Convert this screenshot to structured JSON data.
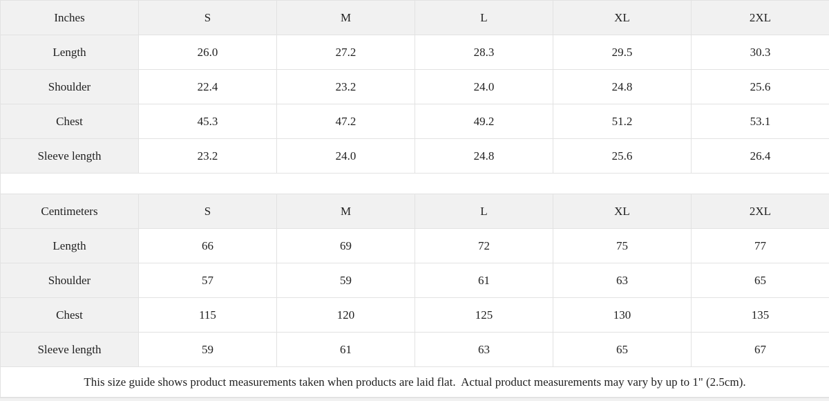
{
  "inches": {
    "unit": "Inches",
    "sizes": [
      "S",
      "M",
      "L",
      "XL",
      "2XL"
    ],
    "rows": [
      {
        "label": "Length",
        "values": [
          "26.0",
          "27.2",
          "28.3",
          "29.5",
          "30.3"
        ]
      },
      {
        "label": "Shoulder",
        "values": [
          "22.4",
          "23.2",
          "24.0",
          "24.8",
          "25.6"
        ]
      },
      {
        "label": "Chest",
        "values": [
          "45.3",
          "47.2",
          "49.2",
          "51.2",
          "53.1"
        ]
      },
      {
        "label": "Sleeve length",
        "values": [
          "23.2",
          "24.0",
          "24.8",
          "25.6",
          "26.4"
        ]
      }
    ]
  },
  "centimeters": {
    "unit": "Centimeters",
    "sizes": [
      "S",
      "M",
      "L",
      "XL",
      "2XL"
    ],
    "rows": [
      {
        "label": "Length",
        "values": [
          "66",
          "69",
          "72",
          "75",
          "77"
        ]
      },
      {
        "label": "Shoulder",
        "values": [
          "57",
          "59",
          "61",
          "63",
          "65"
        ]
      },
      {
        "label": "Chest",
        "values": [
          "115",
          "120",
          "125",
          "130",
          "135"
        ]
      },
      {
        "label": "Sleeve length",
        "values": [
          "59",
          "61",
          "63",
          "65",
          "67"
        ]
      }
    ]
  },
  "footer": {
    "note": "This size guide shows product measurements taken when products are laid flat.  Actual product measurements may vary by up to 1\" (2.5cm)."
  },
  "colors": {
    "header_bg": "#f1f1f1",
    "border": "#e2e2e2",
    "text": "#1f1f1f",
    "row_bg": "#ffffff"
  }
}
